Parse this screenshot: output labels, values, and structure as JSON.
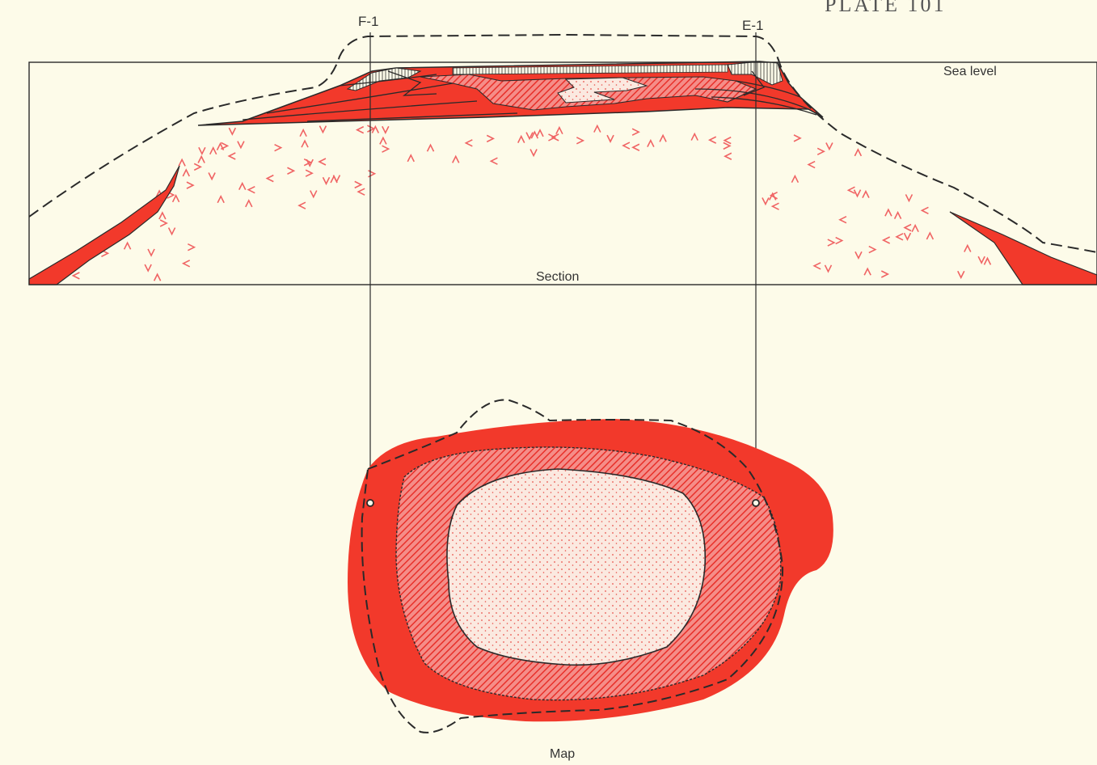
{
  "header": {
    "plate_label": "PLATE 101"
  },
  "wells": [
    {
      "id": "F-1",
      "label": "F-1"
    },
    {
      "id": "E-1",
      "label": "E-1"
    }
  ],
  "section": {
    "sea_level_label": "Sea level",
    "caption": "Section"
  },
  "map": {
    "caption": "Map"
  },
  "colors": {
    "background": "#fdfbe9",
    "reef_red": "#f2392b",
    "hatch_red": "#ee5b57",
    "core_fill": "#fbe6dc",
    "volcanic_mark": "#f06464",
    "line": "#2a2a2a"
  }
}
